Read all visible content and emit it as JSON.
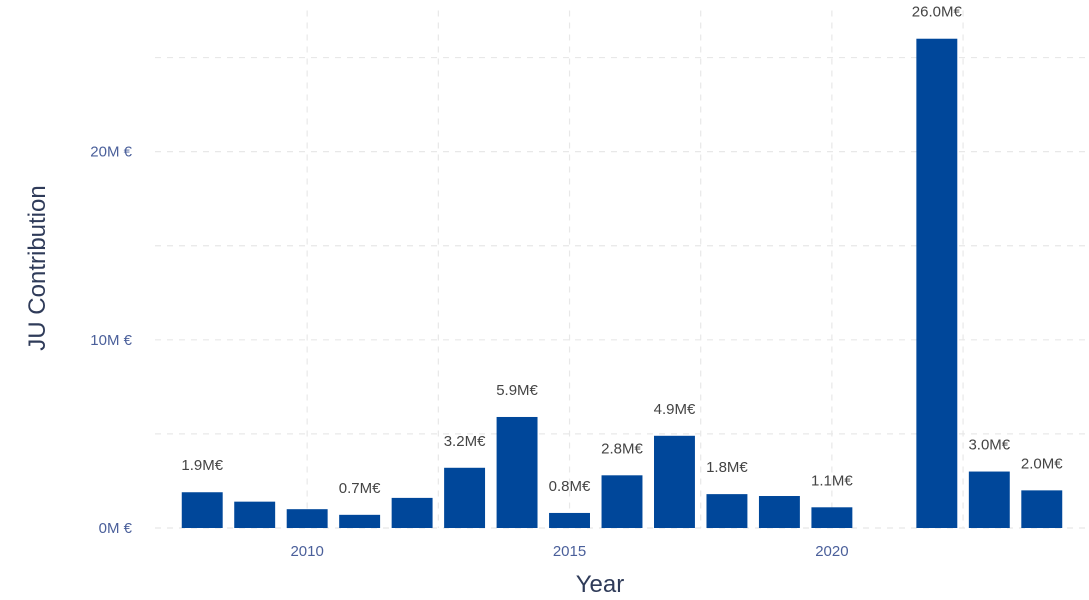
{
  "chart_data": {
    "type": "bar",
    "x": [
      2008,
      2009,
      2010,
      2011,
      2012,
      2013,
      2014,
      2015,
      2016,
      2017,
      2018,
      2019,
      2020,
      2022,
      2023,
      2024
    ],
    "values": [
      1.9,
      1.4,
      1.0,
      0.7,
      1.6,
      3.2,
      5.9,
      0.8,
      2.8,
      4.9,
      1.8,
      1.7,
      1.1,
      26.0,
      3.0,
      2.0
    ],
    "data_labels": [
      "1.9M€",
      "",
      "",
      "0.7M€",
      "",
      "3.2M€",
      "5.9M€",
      "0.8M€",
      "2.8M€",
      "4.9M€",
      "1.8M€",
      "",
      "1.1M€",
      "26.0M€",
      "3.0M€",
      "2.0M€"
    ],
    "xlabel": "Year",
    "ylabel": "JU Contribution",
    "x_ticks": [
      2010,
      2015,
      2020
    ],
    "y_ticks": [
      0,
      10,
      20
    ],
    "y_tick_labels": [
      "0M €",
      "10M €",
      "20M €"
    ],
    "xlim": [
      2007.1,
      2024.9
    ],
    "ylim": [
      0,
      27.5
    ],
    "grid": true,
    "bar_color": "#00479a"
  }
}
